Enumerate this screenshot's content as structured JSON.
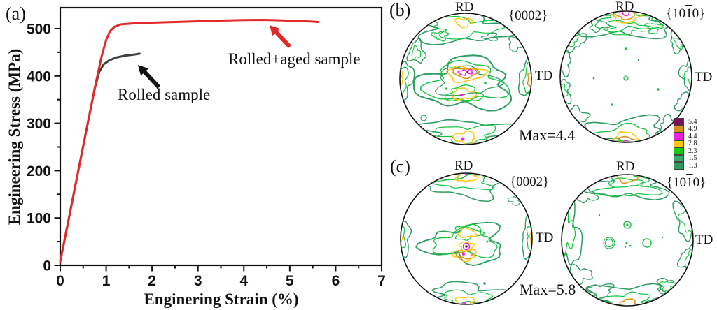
{
  "panel_a": {
    "label": "(a)"
  },
  "chart_data": {
    "type": "line",
    "title": "",
    "xlabel": "Enginering Strain (%)",
    "ylabel": "Engineering Stress (MPa)",
    "xlim": [
      0,
      7
    ],
    "ylim": [
      0,
      545
    ],
    "x_ticks": [
      0,
      1,
      2,
      3,
      4,
      5,
      6,
      7
    ],
    "y_ticks": [
      0,
      100,
      200,
      300,
      400,
      500
    ],
    "x_minor_step": 0.5,
    "y_minor_step": 50,
    "grid": false,
    "legend_position": "inline-annotations",
    "series": [
      {
        "name": "Rolled sample",
        "color": "#3f3f3f",
        "points": [
          [
            0,
            8
          ],
          [
            0.2,
            105
          ],
          [
            0.4,
            203
          ],
          [
            0.6,
            300
          ],
          [
            0.75,
            373
          ],
          [
            0.85,
            409
          ],
          [
            0.95,
            425
          ],
          [
            1.07,
            433
          ],
          [
            1.22,
            439
          ],
          [
            1.42,
            443
          ],
          [
            1.6,
            445
          ],
          [
            1.73,
            447
          ]
        ]
      },
      {
        "name": "Rolled+aged sample",
        "color": "#e12b2b",
        "points": [
          [
            0,
            8
          ],
          [
            0.2,
            105
          ],
          [
            0.4,
            203
          ],
          [
            0.6,
            300
          ],
          [
            0.78,
            387
          ],
          [
            0.9,
            441
          ],
          [
            1.0,
            476
          ],
          [
            1.08,
            494
          ],
          [
            1.18,
            504
          ],
          [
            1.32,
            509
          ],
          [
            1.6,
            511
          ],
          [
            2.0,
            512.5
          ],
          [
            2.5,
            514
          ],
          [
            3.0,
            515.5
          ],
          [
            3.5,
            517
          ],
          [
            4.0,
            518
          ],
          [
            4.4,
            518.5
          ],
          [
            4.8,
            517.5
          ],
          [
            5.2,
            516
          ],
          [
            5.45,
            515
          ],
          [
            5.62,
            514
          ]
        ]
      }
    ],
    "annotations": [
      {
        "text": "Rolled sample",
        "color": "#111111",
        "x": 168,
        "y": 143,
        "arrow_from": [
          227,
          125
        ],
        "arrow_to": [
          197,
          93
        ],
        "arrow_color": "#111111"
      },
      {
        "text": "Rolled+aged sample",
        "color": "#e12b2b",
        "x": 326,
        "y": 92,
        "arrow_from": [
          414,
          67
        ],
        "arrow_to": [
          385,
          36
        ],
        "arrow_color": "#e12b2b"
      }
    ]
  },
  "panel_b": {
    "label": "(b)",
    "max_label": "Max=4.4",
    "figures": [
      {
        "plane_prefix": "{0002}",
        "plane_bar": "",
        "plane_suffix": "",
        "rd": "RD",
        "td": "TD"
      },
      {
        "plane_prefix": "{10",
        "plane_bar": "1",
        "plane_suffix": "0}",
        "rd": "RD",
        "td": "TD"
      }
    ]
  },
  "panel_c": {
    "label": "(c)",
    "max_label": "Max=5.8",
    "figures": [
      {
        "plane_prefix": "{0002}",
        "plane_bar": "",
        "plane_suffix": "",
        "rd": "RD",
        "td": "TD"
      },
      {
        "plane_prefix": "{10",
        "plane_bar": "1",
        "plane_suffix": "0}",
        "rd": "RD",
        "td": "TD"
      }
    ]
  },
  "legend_bar": {
    "levels": [
      {
        "value": "5.4",
        "color": "#7b1155"
      },
      {
        "value": "4.9",
        "color": "#d89018"
      },
      {
        "value": "4.4",
        "color": "#f020dd"
      },
      {
        "value": "2.8",
        "color": "#ffc60a"
      },
      {
        "value": "2.3",
        "color": "#12cc12"
      },
      {
        "value": "1.5",
        "color": "#35ab63"
      },
      {
        "value": "1.3",
        "color": "#2f9960"
      }
    ]
  },
  "palette": {
    "sg": "#2e9e63",
    "g": "#10c53c",
    "y": "#ffc60a",
    "o": "#dd9016",
    "m": "#f020dd",
    "p": "#7b1155"
  }
}
